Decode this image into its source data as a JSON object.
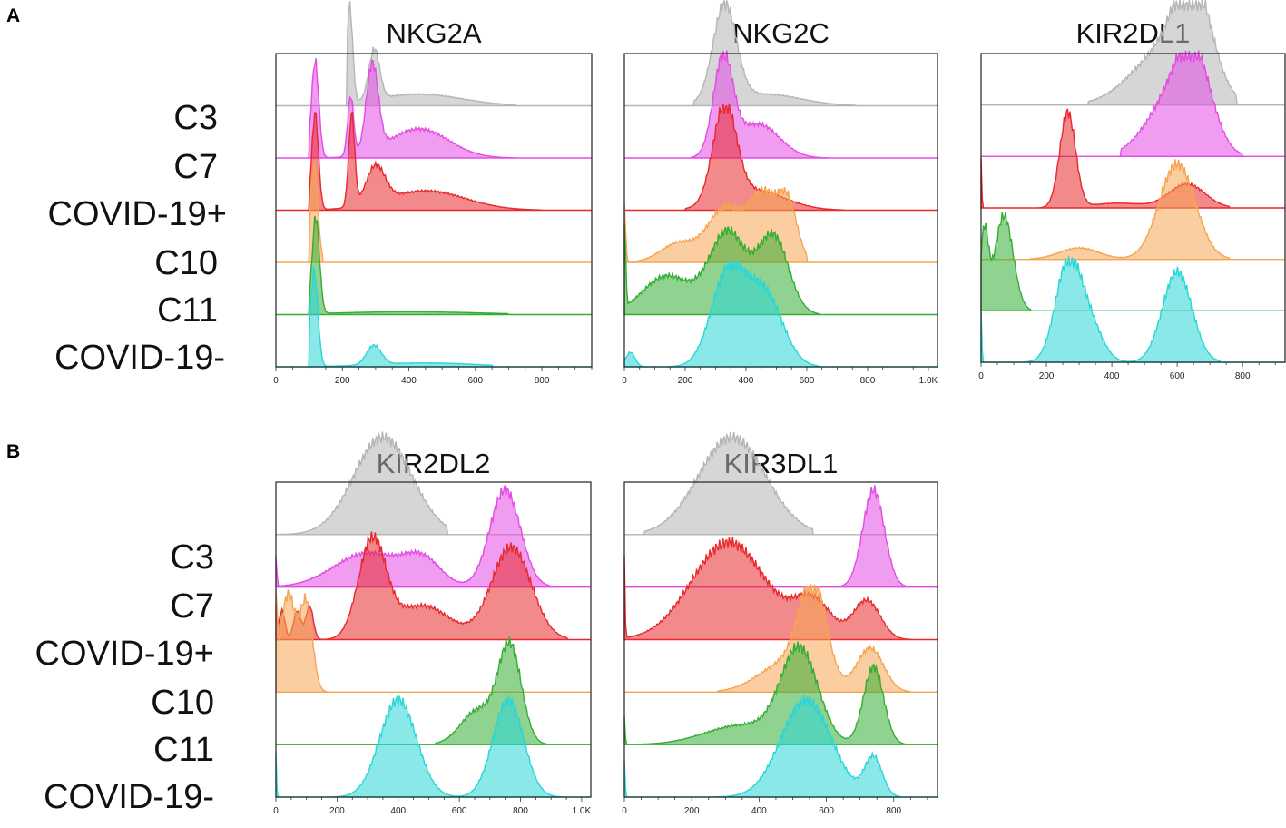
{
  "panels": [
    {
      "letter": "A"
    },
    {
      "letter": "B"
    }
  ],
  "row_labels_A": [
    "C3",
    "C7",
    "COVID-19+",
    "C10",
    "C11",
    "COVID-19-"
  ],
  "row_labels_B": [
    "C3",
    "C7",
    "COVID-19+",
    "C10",
    "C11",
    "COVID-19-"
  ],
  "colors": {
    "C3": "#b5b5b5",
    "C7": "#e34be3",
    "COVID-19+": "#e8282b",
    "C10": "#f5a552",
    "C11": "#34ad34",
    "COVID-19-": "#2ad6d6"
  },
  "chart_data": [
    {
      "type": "area",
      "title": "NKG2A",
      "xlim": [
        0,
        950
      ],
      "xticks": [
        0,
        200,
        400,
        600,
        800
      ],
      "xtick_labels": [
        "0",
        "200",
        "400",
        "600",
        "800"
      ],
      "series": [
        {
          "name": "C3",
          "peaks": [
            [
              222,
              1.0,
              9
            ],
            [
              296,
              0.52,
              16
            ],
            [
              430,
              0.12,
              130
            ]
          ],
          "base": 215,
          "end": 720
        },
        {
          "name": "C7",
          "peaks": [
            [
              118,
              1.0,
              11
            ],
            [
              225,
              0.62,
              9
            ],
            [
              290,
              0.9,
              18
            ],
            [
              430,
              0.3,
              90
            ]
          ],
          "base": 100,
          "end": 760
        },
        {
          "name": "COVID-19+",
          "peaks": [
            [
              118,
              1.0,
              10
            ],
            [
              228,
              0.95,
              9
            ],
            [
              300,
              0.38,
              28
            ],
            [
              450,
              0.2,
              120
            ]
          ],
          "base": 100,
          "end": 800
        },
        {
          "name": "C10",
          "peaks": [
            [
              115,
              1.0,
              11
            ]
          ],
          "base": 100,
          "end": 140
        },
        {
          "name": "C11",
          "peaks": [
            [
              120,
              1.0,
              11
            ],
            [
              400,
              0.03,
              200
            ]
          ],
          "base": 100,
          "end": 700
        },
        {
          "name": "COVID-19-",
          "peaks": [
            [
              115,
              1.0,
              11
            ],
            [
              295,
              0.2,
              22
            ],
            [
              450,
              0.04,
              150
            ]
          ],
          "base": 100,
          "end": 650
        }
      ]
    },
    {
      "type": "area",
      "title": "NKG2C",
      "xlim": [
        0,
        1030
      ],
      "xticks": [
        0,
        200,
        400,
        600,
        800,
        1000
      ],
      "xtick_labels": [
        "0",
        "200",
        "400",
        "600",
        "800",
        "1.0K"
      ],
      "series": [
        {
          "name": "C3",
          "peaks": [
            [
              330,
              1.0,
              38
            ],
            [
              460,
              0.12,
              120
            ]
          ],
          "base": 230,
          "end": 760
        },
        {
          "name": "C7",
          "peaks": [
            [
              325,
              1.0,
              32
            ],
            [
              440,
              0.35,
              70
            ]
          ],
          "base": 220,
          "end": 720
        },
        {
          "name": "COVID-19+",
          "peaks": [
            [
              330,
              1.0,
              38
            ],
            [
              430,
              0.2,
              100
            ]
          ],
          "base": 200,
          "end": 720
        },
        {
          "name": "C10",
          "peaks": [
            [
              0,
              0.6,
              4
            ],
            [
              180,
              0.2,
              60
            ],
            [
              330,
              0.55,
              55
            ],
            [
              460,
              0.7,
              50
            ],
            [
              540,
              0.5,
              30
            ]
          ],
          "base": 0,
          "end": 600
        },
        {
          "name": "C11",
          "peaks": [
            [
              0,
              0.9,
              4
            ],
            [
              140,
              0.4,
              80
            ],
            [
              340,
              0.85,
              60
            ],
            [
              490,
              0.8,
              50
            ]
          ],
          "base": 0,
          "end": 640
        },
        {
          "name": "COVID-19-",
          "peaks": [
            [
              20,
              0.15,
              15
            ],
            [
              340,
              0.95,
              55
            ],
            [
              460,
              0.75,
              60
            ]
          ],
          "base": 0,
          "end": 640
        }
      ]
    },
    {
      "type": "area",
      "title": "KIR2DL1",
      "xlim": [
        0,
        930
      ],
      "xticks": [
        0,
        200,
        400,
        600,
        800
      ],
      "xtick_labels": [
        "0",
        "200",
        "400",
        "600",
        "800"
      ],
      "series": [
        {
          "name": "C3",
          "peaks": [
            [
              560,
              0.55,
              100
            ],
            [
              650,
              1.0,
              55
            ]
          ],
          "base": 330,
          "end": 780
        },
        {
          "name": "C7",
          "peaks": [
            [
              560,
              0.45,
              70
            ],
            [
              650,
              1.0,
              55
            ]
          ],
          "base": 430,
          "end": 800
        },
        {
          "name": "COVID-19+",
          "peaks": [
            [
              0,
              0.5,
              2
            ],
            [
              265,
              1.0,
              24
            ],
            [
              420,
              0.05,
              80
            ],
            [
              630,
              0.25,
              55
            ]
          ],
          "base": 0,
          "end": 760
        },
        {
          "name": "C10",
          "peaks": [
            [
              300,
              0.12,
              60
            ],
            [
              600,
              1.0,
              55
            ]
          ],
          "base": 150,
          "end": 760
        },
        {
          "name": "C11",
          "peaks": [
            [
              10,
              0.8,
              12
            ],
            [
              70,
              1.0,
              28
            ]
          ],
          "base": 0,
          "end": 150
        },
        {
          "name": "COVID-19-",
          "peaks": [
            [
              0,
              0.6,
              2
            ],
            [
              265,
              1.0,
              38
            ],
            [
              330,
              0.4,
              40
            ],
            [
              600,
              0.95,
              45
            ]
          ],
          "base": 0,
          "end": 730
        }
      ]
    },
    {
      "type": "area",
      "title": "KIR2DL2",
      "xlim": [
        0,
        1030
      ],
      "xticks": [
        0,
        200,
        400,
        600,
        800,
        1000
      ],
      "xtick_labels": [
        "0",
        "200",
        "400",
        "600",
        "800",
        "1.0K"
      ],
      "series": [
        {
          "name": "C3",
          "peaks": [
            [
              350,
              1.0,
              95
            ]
          ],
          "base": 0,
          "end": 560
        },
        {
          "name": "C7",
          "peaks": [
            [
              0,
              0.3,
              3
            ],
            [
              300,
              0.35,
              110
            ],
            [
              480,
              0.25,
              60
            ],
            [
              750,
              1.0,
              50
            ]
          ],
          "base": 0,
          "end": 950
        },
        {
          "name": "COVID-19+",
          "peaks": [
            [
              0,
              0.3,
              3
            ],
            [
              20,
              0.3,
              10
            ],
            [
              70,
              0.3,
              12
            ],
            [
              110,
              0.35,
              12
            ],
            [
              315,
              1.0,
              45
            ],
            [
              480,
              0.35,
              90
            ],
            [
              770,
              0.95,
              65
            ]
          ],
          "base": 0,
          "end": 950
        },
        {
          "name": "C10",
          "peaks": [
            [
              0,
              0.9,
              4
            ],
            [
              40,
              1.0,
              25
            ],
            [
              100,
              0.9,
              20
            ]
          ],
          "base": 0,
          "end": 170
        },
        {
          "name": "C11",
          "peaks": [
            [
              660,
              0.35,
              55
            ],
            [
              765,
              1.0,
              38
            ]
          ],
          "base": 520,
          "end": 900
        },
        {
          "name": "COVID-19-",
          "peaks": [
            [
              0,
              0.5,
              2
            ],
            [
              400,
              1.0,
              60
            ],
            [
              760,
              1.0,
              50
            ]
          ],
          "base": 0,
          "end": 950
        }
      ]
    },
    {
      "type": "area",
      "title": "KIR3DL1",
      "xlim": [
        0,
        930
      ],
      "xticks": [
        0,
        200,
        400,
        600,
        800
      ],
      "xtick_labels": [
        "0",
        "200",
        "400",
        "600",
        "800"
      ],
      "series": [
        {
          "name": "C3",
          "peaks": [
            [
              320,
              1.0,
              100
            ]
          ],
          "base": 60,
          "end": 560
        },
        {
          "name": "C7",
          "peaks": [
            [
              740,
              1.0,
              32
            ]
          ],
          "base": 600,
          "end": 900
        },
        {
          "name": "COVID-19+",
          "peaks": [
            [
              0,
              0.8,
              2
            ],
            [
              310,
              1.0,
              110
            ],
            [
              560,
              0.38,
              55
            ],
            [
              720,
              0.4,
              40
            ]
          ],
          "base": 0,
          "end": 860
        },
        {
          "name": "C10",
          "peaks": [
            [
              560,
              1.0,
              40
            ],
            [
              480,
              0.3,
              80
            ],
            [
              730,
              0.45,
              40
            ]
          ],
          "base": 280,
          "end": 850
        },
        {
          "name": "C11",
          "peaks": [
            [
              0,
              0.3,
              2
            ],
            [
              350,
              0.2,
              110
            ],
            [
              520,
              0.95,
              55
            ],
            [
              740,
              0.8,
              30
            ]
          ],
          "base": 0,
          "end": 920
        },
        {
          "name": "COVID-19-",
          "peaks": [
            [
              0,
              0.4,
              2
            ],
            [
              540,
              1.0,
              75
            ],
            [
              740,
              0.4,
              26
            ]
          ],
          "base": 0,
          "end": 820
        }
      ]
    }
  ]
}
